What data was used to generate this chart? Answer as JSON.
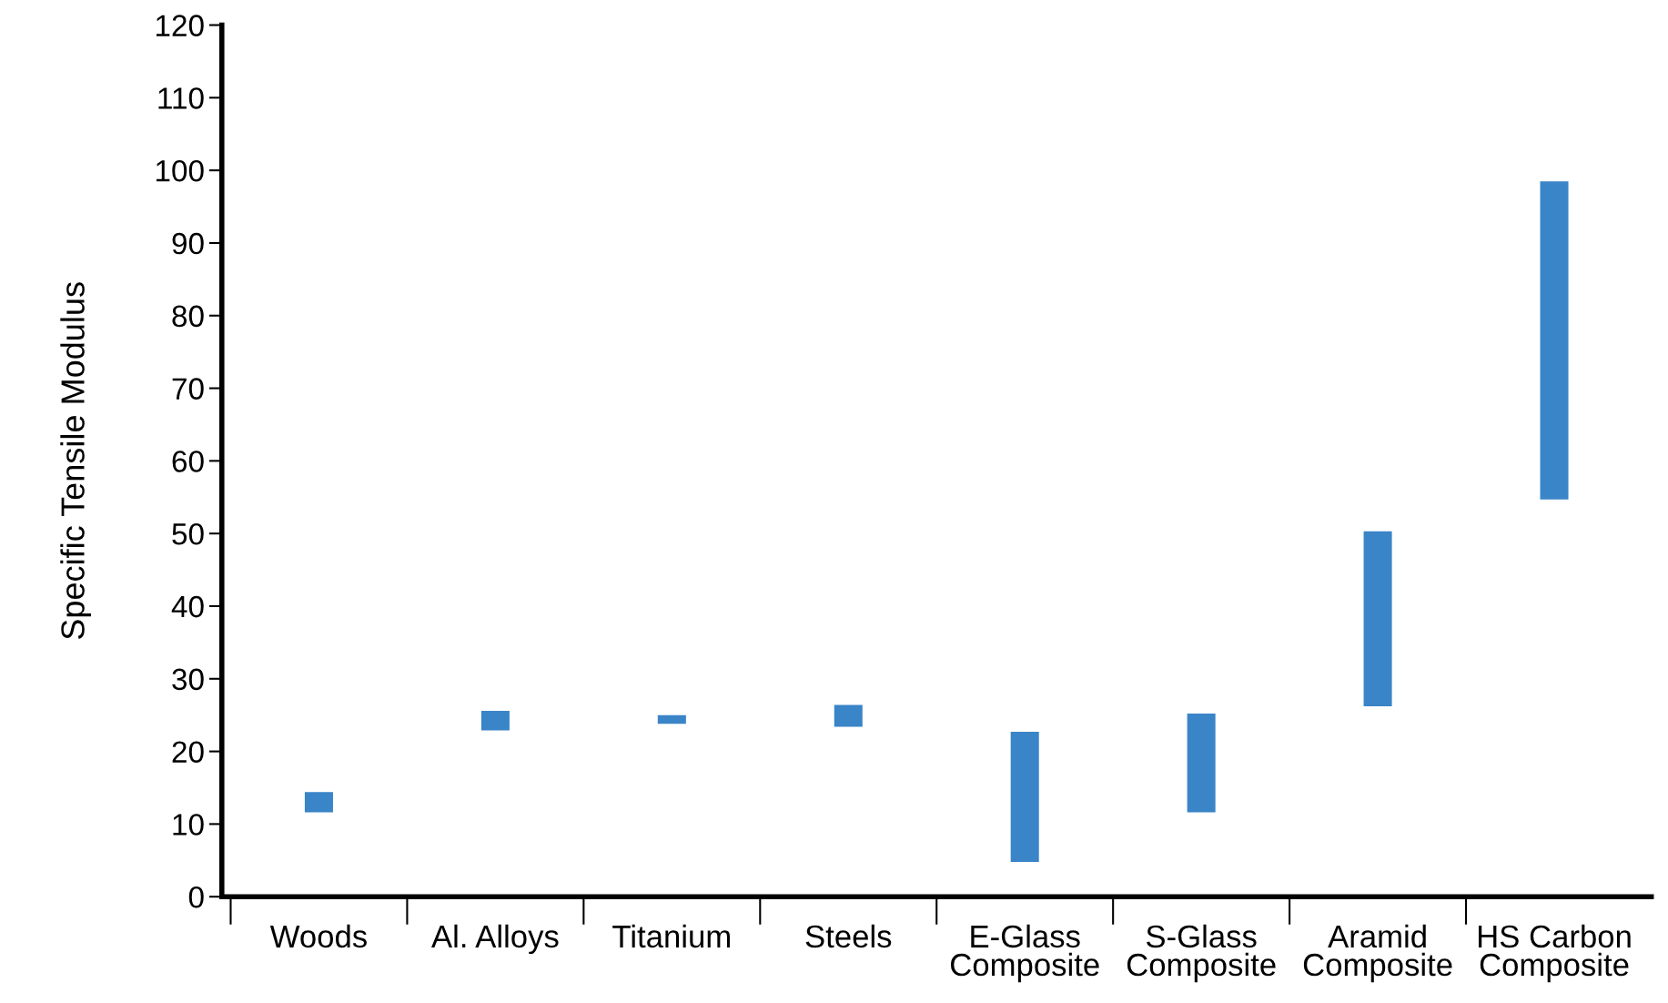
{
  "chart_data": {
    "type": "bar",
    "ylabel": "Specific Tensile Modulus",
    "categories": [
      "Woods",
      "Al. Alloys",
      "Titanium",
      "Steels",
      "E-Glass\nComposite",
      "S-Glass\nComposite",
      "Aramid\nComposite",
      "HS Carbon\nComposite"
    ],
    "base": [
      11.6,
      22.9,
      23.8,
      23.4,
      4.8,
      11.6,
      26.2,
      54.7
    ],
    "values": [
      2.8,
      2.7,
      1.2,
      3.0,
      17.9,
      13.6,
      24.1,
      43.8
    ],
    "color": "#3a84c8",
    "ylim": [
      0,
      120
    ],
    "yticks": [
      0,
      10,
      20,
      30,
      40,
      50,
      60,
      70,
      80,
      90,
      100,
      110,
      120
    ],
    "grid": false,
    "legend": false
  }
}
